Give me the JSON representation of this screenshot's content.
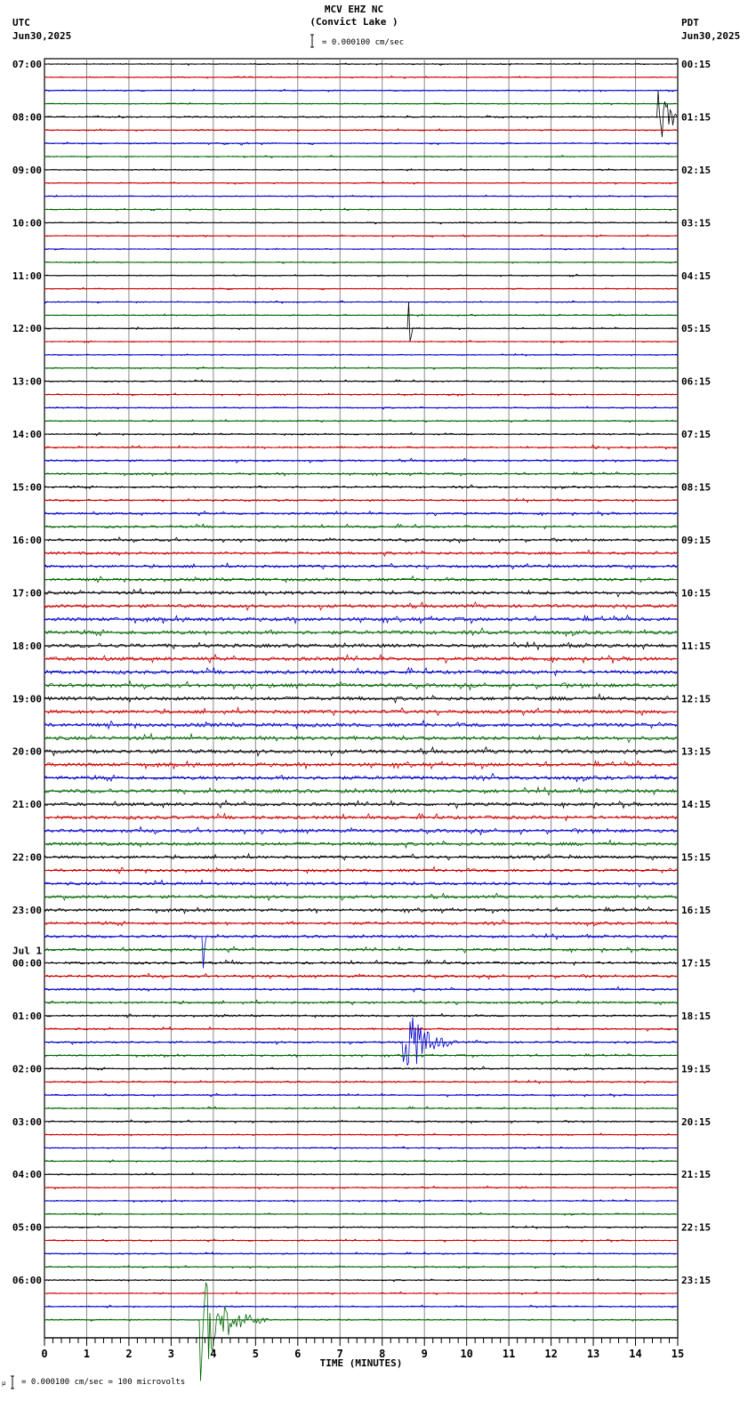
{
  "header": {
    "station": "MCV EHZ NC",
    "location": "(Convict Lake )",
    "left_tz": "UTC",
    "left_date": "Jun30,2025",
    "right_tz": "PDT",
    "right_date": "Jun30,2025",
    "scale_text": "= 0.000100 cm/sec"
  },
  "footer": {
    "scale_text": "= 0.000100 cm/sec =     100 microvolts",
    "xlabel": "TIME (MINUTES)"
  },
  "chart_data": {
    "type": "line",
    "subtype": "helicorder",
    "title": "MCV EHZ NC (Convict Lake )",
    "xlabel": "TIME (MINUTES)",
    "xlim": [
      0,
      15
    ],
    "x_ticks": [
      0,
      1,
      2,
      3,
      4,
      5,
      6,
      7,
      8,
      9,
      10,
      11,
      12,
      13,
      14,
      15
    ],
    "minor_tick_step": 0.2,
    "traces_per_hour": 4,
    "trace_minutes": 15,
    "trace_colors": [
      "#000000",
      "#cc0000",
      "#0000cc",
      "#006600"
    ],
    "grid": true,
    "left_labels_utc": [
      "07:00",
      "08:00",
      "09:00",
      "10:00",
      "11:00",
      "12:00",
      "13:00",
      "14:00",
      "15:00",
      "16:00",
      "17:00",
      "18:00",
      "19:00",
      "20:00",
      "21:00",
      "22:00",
      "23:00",
      "00:00",
      "01:00",
      "02:00",
      "03:00",
      "04:00",
      "05:00",
      "06:00"
    ],
    "day_change_label": "Jul 1",
    "day_change_index": 17,
    "right_labels_pdt": [
      "00:15",
      "01:15",
      "02:15",
      "03:15",
      "04:15",
      "05:15",
      "06:15",
      "07:15",
      "08:15",
      "09:15",
      "10:15",
      "11:15",
      "12:15",
      "13:15",
      "14:15",
      "15:15",
      "16:15",
      "17:15",
      "18:15",
      "19:15",
      "20:15",
      "21:15",
      "22:15",
      "23:15"
    ],
    "noise_profile": [
      0.6,
      0.6,
      0.6,
      0.6,
      0.7,
      0.7,
      0.7,
      0.6,
      0.6,
      0.6,
      0.6,
      0.6,
      0.6,
      0.6,
      0.6,
      0.6,
      0.6,
      0.6,
      0.6,
      0.6,
      0.6,
      0.6,
      0.6,
      0.6,
      0.7,
      0.7,
      0.7,
      0.7,
      0.8,
      0.9,
      1.0,
      1.0,
      1.0,
      1.0,
      1.1,
      1.2,
      1.3,
      1.4,
      1.5,
      1.6,
      1.8,
      1.8,
      2.0,
      2.0,
      2.0,
      2.0,
      2.0,
      2.0,
      2.0,
      2.0,
      2.0,
      2.0,
      2.0,
      2.0,
      2.0,
      2.0,
      1.8,
      1.8,
      1.8,
      1.8,
      1.6,
      1.6,
      1.6,
      1.6,
      1.5,
      1.5,
      1.4,
      1.4,
      1.3,
      1.3,
      1.2,
      1.2,
      1.0,
      1.0,
      1.0,
      0.9,
      0.9,
      0.9,
      0.8,
      0.8,
      0.8,
      0.7,
      0.7,
      0.7,
      0.7,
      0.7,
      0.7,
      0.7,
      0.7,
      0.7,
      0.7,
      0.7,
      0.7,
      0.7,
      0.7,
      0.7
    ],
    "events": [
      {
        "trace": 4,
        "minute": 14.55,
        "amplitude": 30,
        "duration": 1.0,
        "note": "local event ~08:14 UTC"
      },
      {
        "trace": 4,
        "minute": 10.5,
        "amplitude": 2,
        "duration": 1.2
      },
      {
        "trace": 6,
        "minute": 4.65,
        "amplitude": 4,
        "duration": 0.3
      },
      {
        "trace": 20,
        "minute": 2.1,
        "amplitude": 4,
        "duration": 0.3
      },
      {
        "trace": 20,
        "minute": 8.62,
        "amplitude": 60,
        "duration": 0.1,
        "note": "spike"
      },
      {
        "trace": 29,
        "minute": 13.0,
        "amplitude": 4,
        "duration": 0.4
      },
      {
        "trace": 66,
        "minute": 3.78,
        "amplitude": 26,
        "duration": 0.1,
        "note": "spike"
      },
      {
        "trace": 74,
        "minute": 8.5,
        "amplitude": 55,
        "duration": 1.3,
        "note": "regional event ~01:38 UTC"
      },
      {
        "trace": 85,
        "minute": 11.2,
        "amplitude": 2,
        "duration": 0.6
      },
      {
        "trace": 94,
        "minute": 11.5,
        "amplitude": 2,
        "duration": 0.9
      },
      {
        "trace": 95,
        "minute": 3.7,
        "amplitude": 70,
        "duration": 1.6,
        "note": "local event ~06:48 UTC"
      }
    ]
  }
}
